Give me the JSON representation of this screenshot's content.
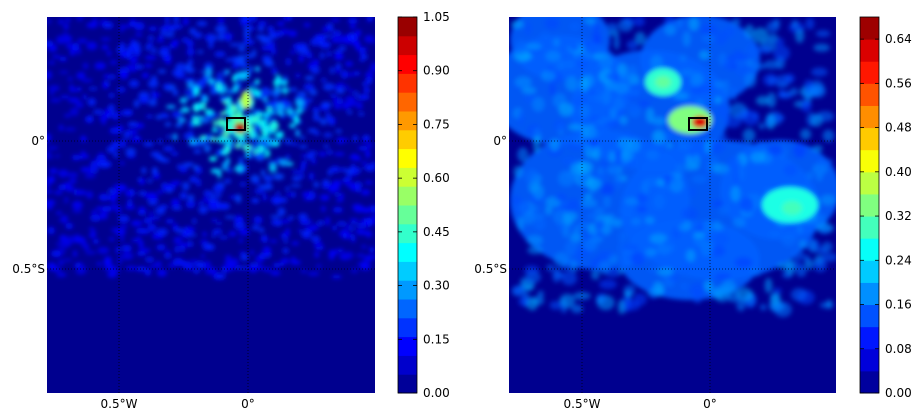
{
  "chart_data": [
    {
      "type": "heatmap",
      "title": "",
      "xlabel": "",
      "ylabel": "",
      "x_tick_labels": [
        "0.5°W",
        "0°"
      ],
      "y_tick_labels": [
        "0°",
        "0.5°S"
      ],
      "colorbar": {
        "min": 0.0,
        "max": 1.05,
        "levels": 20,
        "tick_labels": [
          "0.00",
          "0.15",
          "0.30",
          "0.45",
          "0.60",
          "0.75",
          "0.90",
          "1.05"
        ]
      },
      "peak_value": 1.05,
      "colormap": "jet",
      "grid": true,
      "marker_box": "black rectangle near the peak",
      "hotspots": [
        {
          "value": 1.0,
          "location": "just west of 0°, just north of 0°"
        }
      ]
    },
    {
      "type": "heatmap",
      "title": "",
      "xlabel": "",
      "ylabel": "",
      "x_tick_labels": [
        "0.5°W",
        "0°"
      ],
      "y_tick_labels": [
        "0°",
        "0.5°S"
      ],
      "colorbar": {
        "min": 0.0,
        "max": 0.68,
        "levels": 17,
        "tick_labels": [
          "0.00",
          "0.08",
          "0.16",
          "0.24",
          "0.32",
          "0.40",
          "0.48",
          "0.56",
          "0.64"
        ]
      },
      "peak_value": 0.64,
      "colormap": "jet",
      "grid": true,
      "marker_box": "black rectangle near the peak",
      "hotspots": [
        {
          "value": 0.62,
          "location": "just west of 0°, just north of 0°"
        },
        {
          "value": 0.32,
          "location": "northwest of the box"
        },
        {
          "value": 0.3,
          "location": "southeast, east of 0°"
        }
      ]
    }
  ]
}
